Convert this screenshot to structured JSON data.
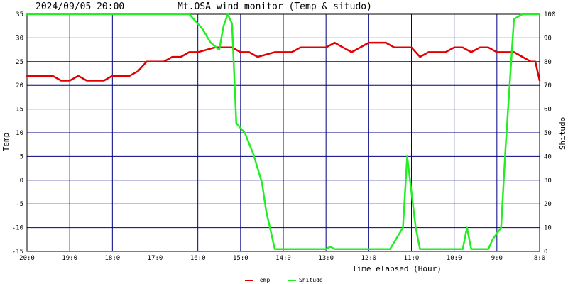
{
  "header": {
    "timestamp": "2024/09/05 20:00",
    "title": "Mt.OSA wind monitor (Temp & situdo)"
  },
  "chart_data": {
    "type": "line",
    "xlabel": "Time elapsed (Hour)",
    "ylabel_left": "Temp",
    "ylabel_right": "Shitudo",
    "x_ticks": [
      "20:0",
      "19:0",
      "18:0",
      "17:0",
      "16:0",
      "15:0",
      "14:0",
      "13:0",
      "12:0",
      "11:0",
      "10:0",
      "9:0",
      "8:0"
    ],
    "y_left_ticks": [
      "35",
      "30",
      "25",
      "20",
      "15",
      "10",
      "5",
      "0",
      "-5",
      "-10",
      "-15"
    ],
    "y_right_ticks": [
      "100",
      "90",
      "80",
      "70",
      "60",
      "50",
      "40",
      "30",
      "20",
      "10",
      "0"
    ],
    "xlim": [
      0,
      12
    ],
    "ylim_left": [
      -15,
      35
    ],
    "ylim_right": [
      0,
      100
    ],
    "grid": true,
    "legend_position": "bottom-center",
    "series": [
      {
        "name": "Temp",
        "axis": "left",
        "color": "#e00000",
        "x": [
          0,
          0.6,
          0.8,
          1.0,
          1.2,
          1.4,
          1.8,
          2.0,
          2.4,
          2.6,
          2.8,
          3.0,
          3.2,
          3.4,
          3.6,
          3.8,
          4.0,
          4.4,
          4.6,
          4.8,
          5.0,
          5.2,
          5.4,
          5.8,
          6.0,
          6.2,
          6.4,
          6.6,
          6.8,
          7.0,
          7.2,
          7.4,
          7.6,
          7.8,
          8.0,
          8.4,
          8.6,
          8.8,
          9.0,
          9.2,
          9.4,
          9.6,
          9.8,
          10.0,
          10.2,
          10.4,
          10.6,
          10.8,
          11.0,
          11.2,
          11.4,
          11.6,
          11.8,
          11.9,
          12.0
        ],
        "values": [
          22,
          22,
          21,
          21,
          22,
          21,
          21,
          22,
          22,
          23,
          25,
          25,
          25,
          26,
          26,
          27,
          27,
          28,
          28,
          28,
          27,
          27,
          26,
          27,
          27,
          27,
          28,
          28,
          28,
          28,
          29,
          28,
          27,
          28,
          29,
          29,
          28,
          28,
          28,
          26,
          27,
          27,
          27,
          28,
          28,
          27,
          28,
          28,
          27,
          27,
          27,
          26,
          25,
          25,
          21
        ]
      },
      {
        "name": "Shitudo",
        "axis": "right",
        "color": "#22ee22",
        "x": [
          0,
          3.6,
          3.8,
          4.1,
          4.3,
          4.5,
          4.6,
          4.7,
          4.8,
          4.9,
          5.1,
          5.3,
          5.5,
          5.6,
          5.8,
          6.0,
          6.6,
          6.8,
          7.0,
          7.1,
          7.2,
          7.4,
          7.6,
          8.0,
          8.5,
          8.8,
          8.9,
          9.1,
          9.2,
          9.5,
          9.8,
          10.1,
          10.2,
          10.3,
          10.4,
          10.5,
          10.6,
          10.8,
          10.9,
          11.1,
          11.2,
          11.4,
          11.6,
          11.7,
          11.9,
          12.0
        ],
        "values": [
          100,
          100,
          100,
          94,
          88,
          85,
          95,
          100,
          96,
          54,
          50,
          41,
          29,
          17,
          1,
          1,
          1,
          1,
          1,
          2,
          1,
          1,
          1,
          1,
          1,
          10,
          40,
          10,
          1,
          1,
          1,
          1,
          1,
          10,
          1,
          1,
          1,
          1,
          5,
          10,
          43,
          98,
          100,
          100,
          100,
          100
        ]
      }
    ]
  }
}
